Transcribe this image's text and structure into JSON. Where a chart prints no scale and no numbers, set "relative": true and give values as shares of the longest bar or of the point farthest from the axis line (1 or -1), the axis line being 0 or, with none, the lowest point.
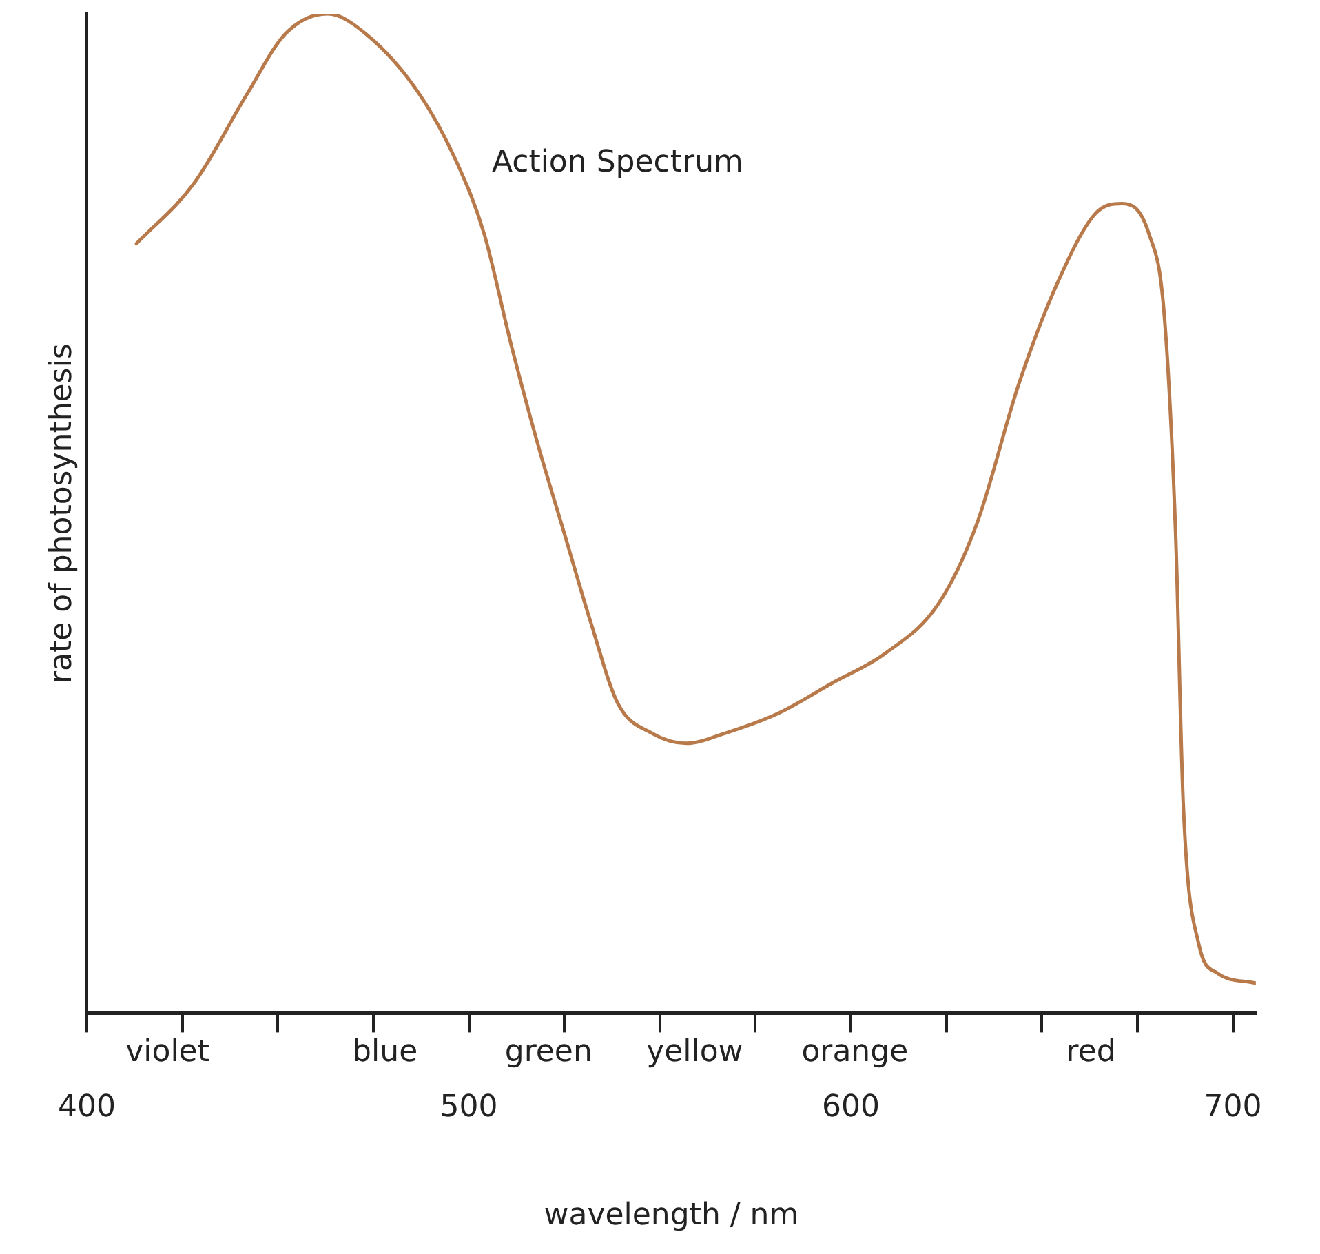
{
  "chart_data": {
    "type": "line",
    "relative": true,
    "xlabel": "wavelength / nm",
    "ylabel": "rate of photosynthesis",
    "xlim": [
      400,
      706
    ],
    "xticks": [
      400,
      {
        "value": 425,
        "label": null
      },
      {
        "value": 450,
        "label": null
      },
      {
        "value": 475,
        "label": null
      },
      500,
      {
        "value": 525,
        "label": null
      },
      {
        "value": 550,
        "label": null
      },
      {
        "value": 575,
        "label": null
      },
      600,
      {
        "value": 625,
        "label": null
      },
      {
        "value": 650,
        "label": null
      },
      {
        "value": 675,
        "label": null
      },
      700
    ],
    "annotations": [
      "violet",
      "blue",
      "green",
      "yellow",
      "orange",
      "red"
    ],
    "grid": false,
    "legend": false,
    "marker": "none",
    "line_style": "solid",
    "series": [
      {
        "name": "Action Spectrum",
        "color": "#b87a4b",
        "x": [
          413,
          428,
          442,
          452,
          463,
          473,
          487,
          497,
          504,
          511,
          518,
          525,
          532,
          539,
          548,
          557,
          567,
          581,
          595,
          609,
          623,
          633,
          644,
          654,
          664,
          671,
          678,
          682,
          685,
          687,
          691,
          696,
          706
        ],
        "values": [
          0.77,
          0.83,
          0.92,
          0.98,
          1.0,
          0.98,
          0.92,
          0.85,
          0.78,
          0.67,
          0.57,
          0.48,
          0.39,
          0.31,
          0.28,
          0.27,
          0.28,
          0.3,
          0.33,
          0.36,
          0.41,
          0.49,
          0.63,
          0.73,
          0.8,
          0.81,
          0.78,
          0.7,
          0.48,
          0.21,
          0.07,
          0.04,
          0.03
        ]
      }
    ]
  }
}
